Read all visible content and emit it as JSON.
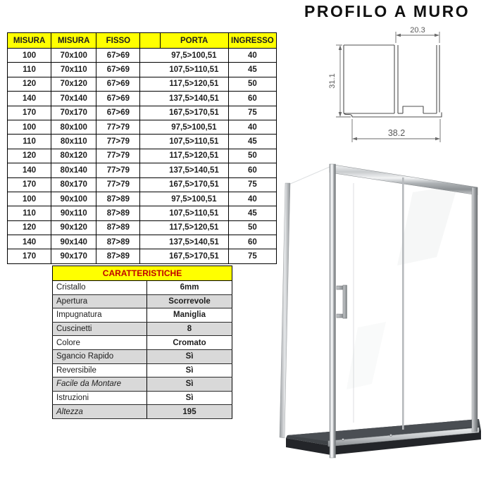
{
  "profile": {
    "title": "PROFILO A MURO",
    "dim_top_width": "20.3",
    "dim_left_height": "31.1",
    "dim_bottom_width": "38.2"
  },
  "size_table": {
    "header_bg": "#FFFF00",
    "headers": [
      "MISURA",
      "MISURA",
      "FISSO",
      "",
      "PORTA",
      "INGRESSO"
    ],
    "rows": [
      [
        "100",
        "70x100",
        "67>69",
        "",
        "97,5>100,51",
        "40"
      ],
      [
        "110",
        "70x110",
        "67>69",
        "",
        "107,5>110,51",
        "45"
      ],
      [
        "120",
        "70x120",
        "67>69",
        "",
        "117,5>120,51",
        "50"
      ],
      [
        "140",
        "70x140",
        "67>69",
        "",
        "137,5>140,51",
        "60"
      ],
      [
        "170",
        "70x170",
        "67>69",
        "",
        "167,5>170,51",
        "75"
      ],
      [
        "100",
        "80x100",
        "77>79",
        "",
        "97,5>100,51",
        "40"
      ],
      [
        "110",
        "80x110",
        "77>79",
        "",
        "107,5>110,51",
        "45"
      ],
      [
        "120",
        "80x120",
        "77>79",
        "",
        "117,5>120,51",
        "50"
      ],
      [
        "140",
        "80x140",
        "77>79",
        "",
        "137,5>140,51",
        "60"
      ],
      [
        "170",
        "80x170",
        "77>79",
        "",
        "167,5>170,51",
        "75"
      ],
      [
        "100",
        "90x100",
        "87>89",
        "",
        "97,5>100,51",
        "40"
      ],
      [
        "110",
        "90x110",
        "87>89",
        "",
        "107,5>110,51",
        "45"
      ],
      [
        "120",
        "90x120",
        "87>89",
        "",
        "117,5>120,51",
        "50"
      ],
      [
        "140",
        "90x140",
        "87>89",
        "",
        "137,5>140,51",
        "60"
      ],
      [
        "170",
        "90x170",
        "87>89",
        "",
        "167,5>170,51",
        "75"
      ]
    ]
  },
  "features_table": {
    "title": "CARATTERISTICHE",
    "title_color": "#C00000",
    "rows": [
      {
        "label": "Cristallo",
        "value": "6mm",
        "italic": false
      },
      {
        "label": "Apertura",
        "value": "Scorrevole",
        "italic": false
      },
      {
        "label": "Impugnatura",
        "value": "Maniglia",
        "italic": false
      },
      {
        "label": "Cuscinetti",
        "value": "8",
        "italic": false
      },
      {
        "label": "Colore",
        "value": "Cromato",
        "italic": false
      },
      {
        "label": "Sgancio Rapido",
        "value": "Sì",
        "italic": false
      },
      {
        "label": "Reversibile",
        "value": "Sì",
        "italic": false
      },
      {
        "label": "Facile da Montare",
        "value": "Sì",
        "italic": true
      },
      {
        "label": "Istruzioni",
        "value": "Sì",
        "italic": false
      },
      {
        "label": "Altezza",
        "value": "195",
        "italic": true
      }
    ]
  },
  "colors": {
    "header_yellow": "#FFFF00",
    "features_title_red": "#C00000",
    "row_alt_grey": "#D9D9D9",
    "tray_dark": "#3f4347",
    "tray_front_dark": "#232529",
    "chrome_light": "#f2f4f5",
    "chrome_dark": "#6e7276"
  }
}
